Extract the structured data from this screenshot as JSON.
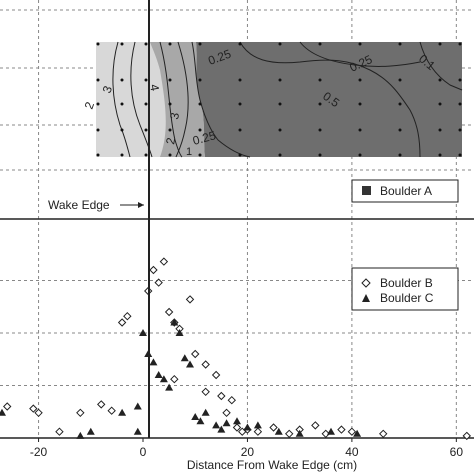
{
  "chart_data": [
    {
      "type": "heatmap",
      "subtype": "contour",
      "legend": [
        "Boulder A"
      ],
      "legend_marker": "square",
      "contour_labels": [
        "0.25",
        "0.25",
        "0.1",
        "0.5",
        "3",
        "2",
        "4",
        "3",
        "2",
        "1",
        "0.25"
      ],
      "annotation": "Wake Edge",
      "colors": {
        "background": "#ffffff",
        "dark_region": "#6e6e6e",
        "light_region": "#d6d6d6",
        "lines": "#222222"
      }
    },
    {
      "type": "scatter",
      "xlabel": "Distance From Wake Edge (cm)",
      "xticks": [
        "-20",
        "0",
        "20",
        "40",
        "60"
      ],
      "xlim": [
        -27,
        63
      ],
      "ylim": [
        0,
        100
      ],
      "grid": true,
      "legend_position": "top-right",
      "series": [
        {
          "name": "Boulder B",
          "marker": "diamond-open",
          "points": [
            [
              -26,
              15
            ],
            [
              -21,
              14
            ],
            [
              -20,
              12
            ],
            [
              -16,
              3
            ],
            [
              -4,
              55
            ],
            [
              -3,
              58
            ],
            [
              1,
              70
            ],
            [
              2,
              80
            ],
            [
              3,
              74
            ],
            [
              4,
              84
            ],
            [
              5,
              60
            ],
            [
              6,
              55
            ],
            [
              7,
              52
            ],
            [
              9,
              66
            ],
            [
              10,
              40
            ],
            [
              12,
              35
            ],
            [
              14,
              30
            ],
            [
              15,
              20
            ],
            [
              17,
              18
            ],
            [
              18,
              5
            ],
            [
              19,
              3
            ],
            [
              20,
              4
            ],
            [
              22,
              3
            ],
            [
              25,
              5
            ],
            [
              28,
              2
            ],
            [
              30,
              4
            ],
            [
              33,
              6
            ],
            [
              35,
              2
            ],
            [
              38,
              4
            ],
            [
              40,
              3
            ],
            [
              46,
              2
            ],
            [
              62,
              1
            ],
            [
              -12,
              12
            ],
            [
              -8,
              16
            ],
            [
              -6,
              13
            ],
            [
              6,
              28
            ],
            [
              12,
              22
            ],
            [
              16,
              12
            ]
          ]
        },
        {
          "name": "Boulder C",
          "marker": "triangle",
          "points": [
            [
              -27,
              12
            ],
            [
              -10,
              3
            ],
            [
              -4,
              12
            ],
            [
              -1,
              15
            ],
            [
              0,
              50
            ],
            [
              1,
              40
            ],
            [
              2,
              36
            ],
            [
              3,
              30
            ],
            [
              4,
              28
            ],
            [
              5,
              24
            ],
            [
              6,
              55
            ],
            [
              7,
              50
            ],
            [
              8,
              38
            ],
            [
              9,
              35
            ],
            [
              10,
              10
            ],
            [
              11,
              8
            ],
            [
              12,
              12
            ],
            [
              14,
              6
            ],
            [
              15,
              4
            ],
            [
              16,
              7
            ],
            [
              18,
              8
            ],
            [
              20,
              5
            ],
            [
              22,
              6
            ],
            [
              26,
              3
            ],
            [
              30,
              2
            ],
            [
              36,
              3
            ],
            [
              41,
              2
            ],
            [
              -12,
              1
            ],
            [
              -1,
              3
            ]
          ]
        }
      ]
    }
  ]
}
